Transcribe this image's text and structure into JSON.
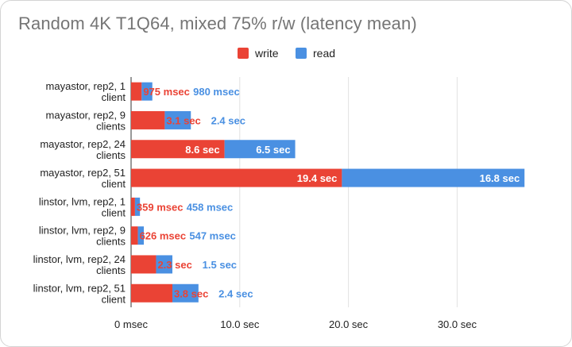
{
  "chart_data": {
    "type": "bar",
    "orientation": "horizontal",
    "stacked": true,
    "title": "Random 4K T1Q64, mixed 75% r/w (latency mean)",
    "legend_position": "top-center",
    "grid": true,
    "xlim": [
      0,
      38
    ],
    "xticks": [
      {
        "value": 0,
        "label": "0 msec"
      },
      {
        "value": 10,
        "label": "10.0 sec"
      },
      {
        "value": 20,
        "label": "20.0 sec"
      },
      {
        "value": 30,
        "label": "30.0 sec"
      }
    ],
    "categories": [
      [
        "mayastor, rep2, 1",
        "client"
      ],
      [
        "mayastor, rep2, 9",
        "clients"
      ],
      [
        "mayastor, rep2, 24",
        "clients"
      ],
      [
        "mayastor, rep2, 51",
        "client"
      ],
      [
        "linstor, lvm, rep2, 1",
        "client"
      ],
      [
        "linstor, lvm, rep2, 9",
        "clients"
      ],
      [
        "linstor, lvm, rep2, 24",
        "clients"
      ],
      [
        "linstor, lvm, rep2, 51",
        "client"
      ]
    ],
    "series": [
      {
        "name": "write",
        "color": "#ea4335",
        "values": [
          0.975,
          3.1,
          8.6,
          19.4,
          0.359,
          0.626,
          2.3,
          3.8
        ],
        "labels": [
          "975 msec",
          "3.1 sec",
          "8.6 sec",
          "19.4 sec",
          "359 msec",
          "626 msec",
          "2.3 sec",
          "3.8 sec"
        ]
      },
      {
        "name": "read",
        "color": "#4a90e2",
        "values": [
          0.98,
          2.4,
          6.5,
          16.8,
          0.458,
          0.547,
          1.5,
          2.4
        ],
        "labels": [
          "980 msec",
          "2.4 sec",
          "6.5 sec",
          "16.8 sec",
          "458 msec",
          "547 msec",
          "1.5 sec",
          "2.4 sec"
        ]
      }
    ]
  }
}
